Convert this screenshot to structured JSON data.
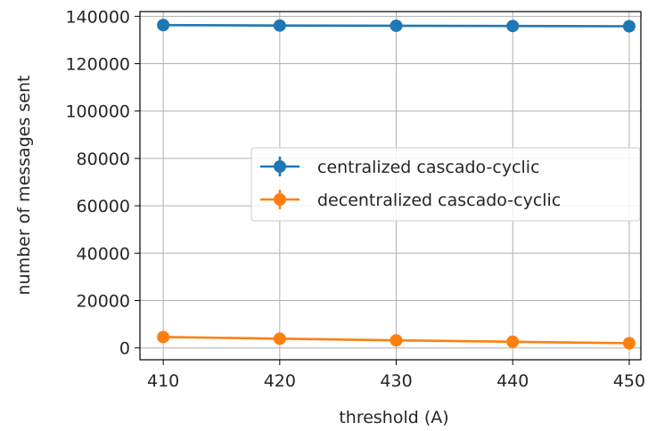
{
  "chart_data": {
    "type": "line",
    "title": "",
    "xlabel": "threshold (A)",
    "ylabel": "number of messages sent",
    "x": [
      410,
      420,
      430,
      440,
      450
    ],
    "xlim": [
      408,
      451
    ],
    "ylim": [
      -5000,
      142000
    ],
    "xticks": [
      "410",
      "420",
      "430",
      "440",
      "450"
    ],
    "yticks": [
      "0",
      "20000",
      "40000",
      "60000",
      "80000",
      "100000",
      "120000",
      "140000"
    ],
    "ytick_values": [
      0,
      20000,
      40000,
      60000,
      80000,
      100000,
      120000,
      140000
    ],
    "grid": true,
    "legend_position": "center-right",
    "series": [
      {
        "name": "centralized cascado-cyclic",
        "color": "#1f77b4",
        "values": [
          136300,
          136100,
          136000,
          135900,
          135800
        ]
      },
      {
        "name": "decentralized cascado-cyclic",
        "color": "#ff7f0e",
        "values": [
          4600,
          3900,
          3200,
          2600,
          2000
        ]
      }
    ]
  }
}
